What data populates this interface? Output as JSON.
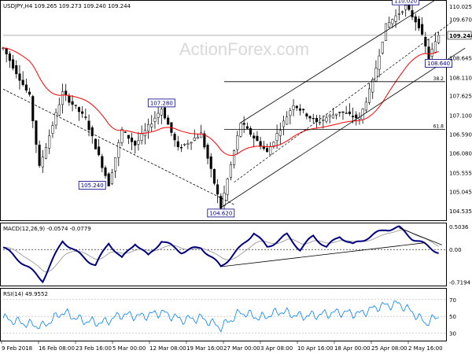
{
  "chart_data": [
    {
      "type": "candlestick",
      "panel": "price",
      "header": "USDJPY,H4  109.265 109.273 109.240 109.244",
      "watermark": "ActionForex.com",
      "ylim": [
        104.3,
        110.15
      ],
      "yticks": [
        "110.025",
        "109.670",
        "109.244",
        "108.645",
        "108.110",
        "107.625",
        "107.100",
        "106.590",
        "106.080",
        "105.555",
        "105.045",
        "104.535"
      ],
      "last_price": "109.244",
      "ma_color": "#ff0000",
      "fib_color": "#000000",
      "fib_levels": [
        {
          "label": "38.2",
          "price": 108.0
        },
        {
          "label": "61.8",
          "price": 106.72
        }
      ],
      "annotations": [
        {
          "label": "110.020",
          "x": 122,
          "price": 110.02
        },
        {
          "label": "107.280",
          "x": 48,
          "price": 107.28
        },
        {
          "label": "105.240",
          "x": 32,
          "price": 105.24
        },
        {
          "label": "104.620",
          "x": 66,
          "price": 104.62
        },
        {
          "label": "108.640",
          "x": 132,
          "price": 108.64
        }
      ],
      "trendlines": [
        {
          "name": "falling-line",
          "from": [
            0,
            107.8
          ],
          "to": [
            70,
            104.7
          ]
        },
        {
          "name": "channel-upper",
          "from": [
            72,
            106.9
          ],
          "to": [
            132,
            110.25
          ]
        },
        {
          "name": "channel-lower",
          "from": [
            66,
            104.62
          ],
          "to": [
            140,
            108.9
          ]
        }
      ],
      "key_points": [
        {
          "x": 0,
          "price": 108.9
        },
        {
          "x": 8,
          "price": 107.6
        },
        {
          "x": 11,
          "price": 105.7
        },
        {
          "x": 18,
          "price": 107.7
        },
        {
          "x": 25,
          "price": 107.0
        },
        {
          "x": 32,
          "price": 105.24
        },
        {
          "x": 36,
          "price": 106.7
        },
        {
          "x": 40,
          "price": 106.3
        },
        {
          "x": 48,
          "price": 107.28
        },
        {
          "x": 53,
          "price": 106.2
        },
        {
          "x": 60,
          "price": 106.6
        },
        {
          "x": 66,
          "price": 104.62
        },
        {
          "x": 72,
          "price": 106.9
        },
        {
          "x": 80,
          "price": 106.1
        },
        {
          "x": 88,
          "price": 107.4
        },
        {
          "x": 95,
          "price": 106.9
        },
        {
          "x": 102,
          "price": 107.2
        },
        {
          "x": 108,
          "price": 107.0
        },
        {
          "x": 112,
          "price": 108.0
        },
        {
          "x": 116,
          "price": 109.5
        },
        {
          "x": 122,
          "price": 110.02
        },
        {
          "x": 126,
          "price": 109.5
        },
        {
          "x": 129,
          "price": 108.64
        },
        {
          "x": 132,
          "price": 109.244
        }
      ]
    },
    {
      "type": "line",
      "panel": "macd",
      "header": "MACD(12,26,9) -0.0574 -0.0779",
      "ylim": [
        -0.78,
        0.56
      ],
      "yticks": [
        "0.5036",
        "0.00",
        "-0.7194"
      ],
      "zero_line": 0,
      "series": [
        {
          "values_points": [
            [
              0,
              0.05
            ],
            [
              6,
              -0.3
            ],
            [
              12,
              -0.68
            ],
            [
              18,
              0.2
            ],
            [
              22,
              -0.05
            ],
            [
              28,
              -0.35
            ],
            [
              32,
              0.15
            ],
            [
              36,
              -0.2
            ],
            [
              40,
              0.15
            ],
            [
              44,
              -0.15
            ],
            [
              48,
              0.2
            ],
            [
              54,
              -0.05
            ],
            [
              60,
              0.05
            ],
            [
              66,
              -0.38
            ],
            [
              72,
              0.05
            ],
            [
              76,
              0.38
            ],
            [
              80,
              0.05
            ],
            [
              86,
              0.32
            ],
            [
              90,
              0.0
            ],
            [
              94,
              0.3
            ],
            [
              98,
              0.05
            ],
            [
              102,
              0.3
            ],
            [
              106,
              0.1
            ],
            [
              110,
              0.25
            ],
            [
              116,
              0.45
            ],
            [
              120,
              0.48
            ],
            [
              124,
              0.25
            ],
            [
              128,
              0.1
            ],
            [
              132,
              -0.06
            ]
          ],
          "color": "#000080"
        }
      ],
      "trendlines": [
        {
          "name": "macd-support",
          "from": [
            66,
            -0.38
          ],
          "to": [
            128,
            0.15
          ]
        },
        {
          "name": "macd-resistance",
          "from": [
            120,
            0.48
          ],
          "to": [
            133,
            0.1
          ]
        }
      ]
    },
    {
      "type": "line",
      "panel": "rsi",
      "header": "RSI(14) 49.9552",
      "ylim": [
        22,
        82
      ],
      "yticks": [
        "70",
        "50",
        "30"
      ],
      "series": [
        {
          "values_points": [
            [
              0,
              48
            ],
            [
              6,
              42
            ],
            [
              12,
              38
            ],
            [
              18,
              55
            ],
            [
              24,
              45
            ],
            [
              30,
              42
            ],
            [
              36,
              52
            ],
            [
              42,
              50
            ],
            [
              48,
              55
            ],
            [
              54,
              46
            ],
            [
              60,
              48
            ],
            [
              66,
              37
            ],
            [
              72,
              55
            ],
            [
              78,
              48
            ],
            [
              84,
              56
            ],
            [
              90,
              50
            ],
            [
              96,
              52
            ],
            [
              102,
              55
            ],
            [
              108,
              53
            ],
            [
              114,
              62
            ],
            [
              120,
              65
            ],
            [
              124,
              55
            ],
            [
              128,
              42
            ],
            [
              132,
              50
            ]
          ],
          "color": "#0080ff"
        }
      ]
    }
  ],
  "x_axis": {
    "labels": [
      "9 Feb 2018",
      "16 Feb 08:00",
      "23 Feb 16:00",
      "5 Mar 00:00",
      "12 Mar 08:00",
      "19 Mar 16:00",
      "27 Mar 00:00",
      "3 Apr 08:00",
      "10 Apr 16:00",
      "18 Apr 00:00",
      "25 Apr 08:00",
      "2 May 16:00"
    ]
  }
}
